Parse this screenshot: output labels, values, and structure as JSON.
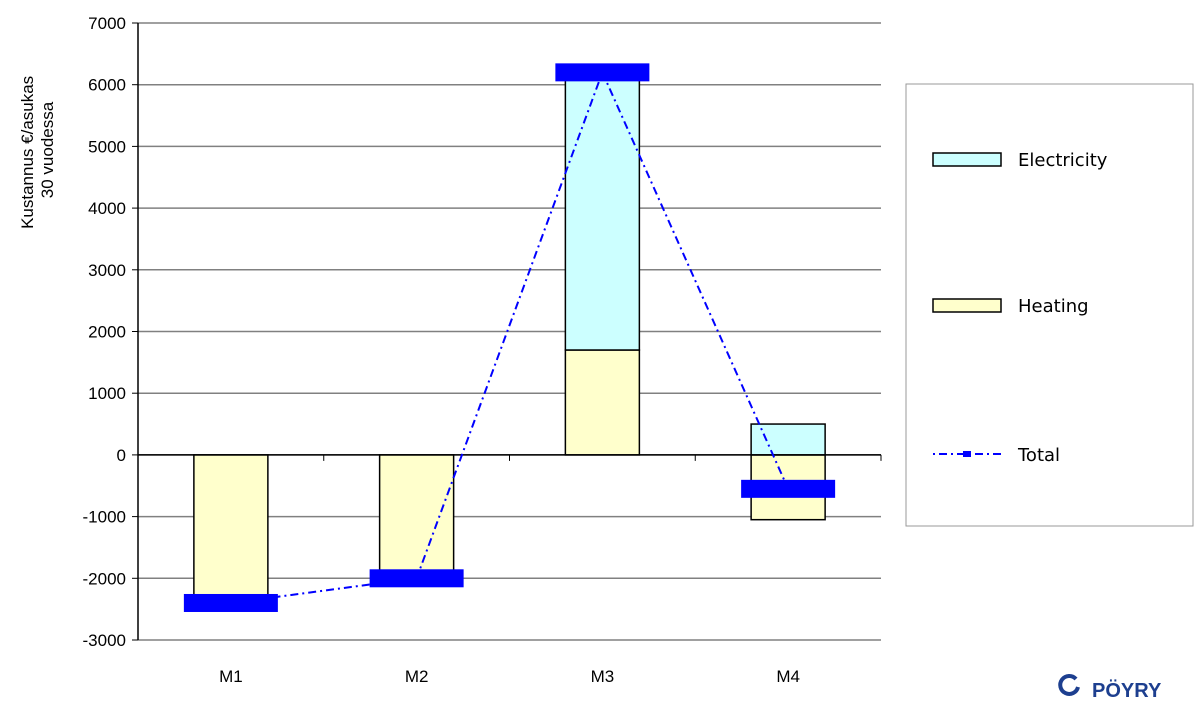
{
  "chart_data": {
    "type": "bar",
    "stacked": true,
    "categories": [
      "M1",
      "M2",
      "M3",
      "M4"
    ],
    "ylabel_lines": [
      "Kustannus €/asukas",
      "30 vuodessa"
    ],
    "ylim": [
      -3000,
      7000
    ],
    "yticks": [
      7000,
      6000,
      5000,
      4000,
      3000,
      2000,
      1000,
      0,
      -1000,
      -2000,
      -3000
    ],
    "grid": true,
    "legend_position": "right",
    "series": [
      {
        "name": "Electricity",
        "type": "bar",
        "values": [
          0,
          0,
          4400,
          500
        ],
        "color": "#ccffff"
      },
      {
        "name": "Heating",
        "type": "bar",
        "values": [
          -2300,
          -1900,
          1700,
          -1050
        ],
        "color": "#ffffcc"
      },
      {
        "name": "Total",
        "type": "line",
        "values": [
          -2400,
          -2000,
          6200,
          -550
        ],
        "color": "#0000ff"
      }
    ]
  },
  "logo": {
    "text": "PÖYRY"
  }
}
